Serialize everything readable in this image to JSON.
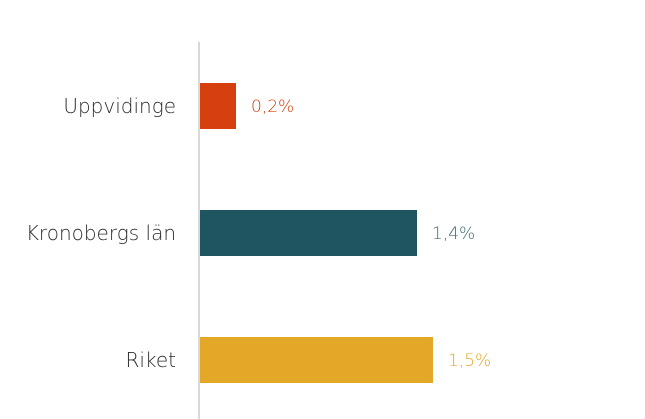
{
  "chart_data": {
    "type": "bar",
    "orientation": "horizontal",
    "categories": [
      "Uppvidinge",
      "Kronobergs län",
      "Riket"
    ],
    "values": [
      0.2,
      1.4,
      1.5
    ],
    "value_labels": [
      "0,2%",
      "1,4%",
      "1,5%"
    ],
    "colors": [
      "#d6400f",
      "#1f5560",
      "#e4a829"
    ],
    "label_colors": [
      "#d6400f",
      "#3f6b73",
      "#e4a829"
    ],
    "axis_color": "#cccccc",
    "grid": false,
    "legend": "none",
    "xlim": [
      0,
      2.2
    ]
  }
}
